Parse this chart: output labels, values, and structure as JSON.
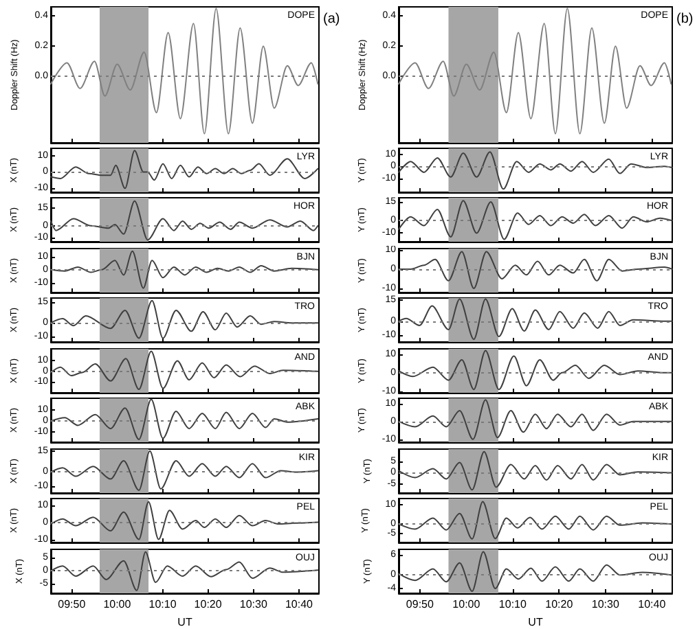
{
  "chart_data": [
    {
      "type": "line",
      "ylabel": "Doppler Shift (Hz)",
      "annotations": [
        "DOPE",
        "(a)"
      ],
      "tick_labels": "y",
      "color": "#808080",
      "xlim": [
        9.757,
        10.74
      ],
      "xticks": [
        {
          "value": 9.8333,
          "label": null
        },
        {
          "value": 10,
          "label": null
        },
        {
          "value": 10.1667,
          "label": null
        },
        {
          "value": 10.3333,
          "label": null
        },
        {
          "value": 10.5,
          "label": null
        },
        {
          "value": 10.6667,
          "label": null
        }
      ],
      "ylim": [
        -0.44,
        0.46
      ],
      "yticks": [
        {
          "value": 0,
          "label": "0.0"
        },
        {
          "value": 0.2,
          "label": "0.2"
        },
        {
          "value": 0.4,
          "label": "0.4"
        }
      ],
      "bands": [
        {
          "axis": "x",
          "from": 9.936,
          "to": 10.115,
          "color": "#a6a6a6"
        }
      ],
      "ref_lines": [
        {
          "axis": "y",
          "value": 0,
          "line_style": "dotted"
        }
      ],
      "x": [
        9.757,
        9.816,
        9.864,
        9.917,
        9.955,
        10.0,
        10.048,
        10.099,
        10.144,
        10.187,
        10.232,
        10.28,
        10.32,
        10.363,
        10.408,
        10.451,
        10.496,
        10.536,
        10.576,
        10.624,
        10.664,
        10.712,
        10.736
      ],
      "values": [
        -0.05,
        0.09,
        -0.08,
        0.1,
        -0.13,
        0.08,
        -0.09,
        0.16,
        -0.24,
        0.29,
        -0.28,
        0.35,
        -0.38,
        0.45,
        -0.38,
        0.32,
        -0.31,
        0.2,
        -0.21,
        0.07,
        -0.06,
        0.09,
        -0.05
      ]
    },
    {
      "type": "line",
      "ylabel": "X (nT)",
      "annotations": [
        "LYR"
      ],
      "tick_labels": "y",
      "color": "#404040",
      "xlim": [
        9.757,
        10.74
      ],
      "xticks": [
        {
          "value": 9.8333,
          "label": null
        },
        {
          "value": 10,
          "label": null
        },
        {
          "value": 10.1667,
          "label": null
        },
        {
          "value": 10.3333,
          "label": null
        },
        {
          "value": 10.5,
          "label": null
        },
        {
          "value": 10.6667,
          "label": null
        }
      ],
      "ylim": [
        -12.4,
        14.4
      ],
      "yticks": [
        -10,
        0,
        10
      ],
      "bands": [
        {
          "axis": "x",
          "from": 9.936,
          "to": 10.115,
          "color": "#a6a6a6"
        }
      ],
      "ref_lines": [
        {
          "axis": "y",
          "value": 0,
          "line_style": "dotted"
        }
      ],
      "x": [
        9.757,
        9.792,
        9.848,
        9.896,
        9.944,
        9.976,
        9.995,
        10.029,
        10.064,
        10.096,
        10.112,
        10.136,
        10.168,
        10.2,
        10.232,
        10.264,
        10.296,
        10.328,
        10.36,
        10.392,
        10.424,
        10.456,
        10.488,
        10.52,
        10.56,
        10.624,
        10.688,
        10.736
      ],
      "values": [
        -3,
        -4,
        3,
        -1,
        -2,
        -2,
        4,
        -10,
        13,
        0,
        0,
        -5,
        5,
        -4,
        4,
        -3,
        3,
        -1,
        2,
        -1,
        2,
        -1,
        1,
        5,
        -2,
        8,
        -4,
        2
      ]
    },
    {
      "type": "line",
      "ylabel": "X (nT)",
      "annotations": [
        "HOR"
      ],
      "tick_labels": "y",
      "color": "#404040",
      "xlim": [
        9.757,
        10.74
      ],
      "xticks": [
        {
          "value": 9.8333,
          "label": null
        },
        {
          "value": 10,
          "label": null
        },
        {
          "value": 10.1667,
          "label": null
        },
        {
          "value": 10.3333,
          "label": null
        },
        {
          "value": 10.5,
          "label": null
        },
        {
          "value": 10.6667,
          "label": null
        }
      ],
      "ylim": [
        -13.5,
        23.7
      ],
      "yticks": [
        -10,
        0,
        15
      ],
      "bands": [
        {
          "axis": "x",
          "from": 9.936,
          "to": 10.115,
          "color": "#a6a6a6"
        }
      ],
      "ref_lines": [
        {
          "axis": "y",
          "value": 0,
          "line_style": "dotted"
        }
      ],
      "x": [
        9.757,
        9.776,
        9.84,
        9.904,
        9.968,
        9.992,
        10.024,
        10.064,
        10.112,
        10.168,
        10.208,
        10.24,
        10.272,
        10.304,
        10.336,
        10.376,
        10.416,
        10.448,
        10.496,
        10.56,
        10.624,
        10.672,
        10.72,
        10.736
      ],
      "values": [
        4,
        -4,
        6,
        0,
        -2,
        1,
        -7,
        21,
        -12,
        6,
        -4,
        4,
        -3,
        2,
        -2,
        3,
        -3,
        3,
        -2,
        5,
        -1,
        4,
        -4,
        0
      ]
    },
    {
      "type": "line",
      "ylabel": "X (nT)",
      "annotations": [
        "BJN"
      ],
      "tick_labels": "y",
      "color": "#404040",
      "xlim": [
        9.757,
        10.74
      ],
      "xticks": [
        {
          "value": 9.8333,
          "label": null
        },
        {
          "value": 10,
          "label": null
        },
        {
          "value": 10.1667,
          "label": null
        },
        {
          "value": 10.3333,
          "label": null
        },
        {
          "value": 10.5,
          "label": null
        },
        {
          "value": 10.6667,
          "label": null
        }
      ],
      "ylim": [
        -17.3,
        16
      ],
      "yticks": [
        -10,
        0,
        10
      ],
      "bands": [
        {
          "axis": "x",
          "from": 9.936,
          "to": 10.115,
          "color": "#a6a6a6"
        }
      ],
      "ref_lines": [
        {
          "axis": "y",
          "value": 0,
          "line_style": "dotted"
        }
      ],
      "x": [
        9.757,
        9.808,
        9.856,
        9.904,
        9.944,
        9.992,
        10.024,
        10.056,
        10.096,
        10.128,
        10.168,
        10.208,
        10.248,
        10.288,
        10.328,
        10.368,
        10.408,
        10.448,
        10.488,
        10.528,
        10.576,
        10.64,
        10.736
      ],
      "values": [
        0,
        -1,
        2,
        -2,
        0,
        7,
        -4,
        14,
        -14,
        7,
        -6,
        2,
        -4,
        2,
        -2,
        1,
        -1,
        2,
        -2,
        3,
        -1,
        1,
        0
      ]
    },
    {
      "type": "line",
      "ylabel": "X (nT)",
      "annotations": [
        "TRO"
      ],
      "tick_labels": "y",
      "color": "#404040",
      "xlim": [
        9.757,
        10.74
      ],
      "xticks": [
        {
          "value": 9.8333,
          "label": null
        },
        {
          "value": 10,
          "label": null
        },
        {
          "value": 10.1667,
          "label": null
        },
        {
          "value": 10.3333,
          "label": null
        },
        {
          "value": 10.5,
          "label": null
        },
        {
          "value": 10.6667,
          "label": null
        }
      ],
      "ylim": [
        -13.7,
        17.8
      ],
      "yticks": [
        -10,
        0,
        15
      ],
      "bands": [
        {
          "axis": "x",
          "from": 9.936,
          "to": 10.115,
          "color": "#a6a6a6"
        }
      ],
      "ref_lines": [
        {
          "axis": "y",
          "value": 0,
          "line_style": "dotted"
        }
      ],
      "x": [
        9.757,
        9.8,
        9.84,
        9.885,
        9.976,
        10.029,
        10.08,
        10.128,
        10.168,
        10.216,
        10.272,
        10.315,
        10.36,
        10.4,
        10.44,
        10.488,
        10.528,
        10.576,
        10.64,
        10.736
      ],
      "values": [
        0,
        3,
        -2,
        5,
        -4,
        9,
        -11,
        16,
        -11,
        9,
        -6,
        8,
        -5,
        7,
        -3,
        5,
        -1,
        1,
        0,
        0
      ]
    },
    {
      "type": "line",
      "ylabel": "X (nT)",
      "annotations": [
        "AND"
      ],
      "tick_labels": "y",
      "color": "#404040",
      "xlim": [
        9.757,
        10.74
      ],
      "xticks": [
        {
          "value": 9.8333,
          "label": null
        },
        {
          "value": 10,
          "label": null
        },
        {
          "value": 10.1667,
          "label": null
        },
        {
          "value": 10.3333,
          "label": null
        },
        {
          "value": 10.5,
          "label": null
        },
        {
          "value": 10.6667,
          "label": null
        }
      ],
      "ylim": [
        -20.2,
        21.3
      ],
      "yticks": [
        -10,
        0,
        10
      ],
      "bands": [
        {
          "axis": "x",
          "from": 9.936,
          "to": 10.115,
          "color": "#a6a6a6"
        }
      ],
      "ref_lines": [
        {
          "axis": "y",
          "value": 0,
          "line_style": "dotted"
        }
      ],
      "x": [
        9.757,
        9.792,
        9.832,
        9.872,
        9.92,
        9.976,
        10.032,
        10.08,
        10.125,
        10.168,
        10.221,
        10.264,
        10.312,
        10.355,
        10.4,
        10.451,
        10.504,
        10.56,
        10.608,
        10.736
      ],
      "values": [
        -1,
        4,
        -4,
        -1,
        7,
        -9,
        12,
        -17,
        19,
        -16,
        10,
        -8,
        8,
        -6,
        6,
        -5,
        5,
        -2,
        1,
        0
      ]
    },
    {
      "type": "line",
      "ylabel": "X (nT)",
      "annotations": [
        "ABK"
      ],
      "tick_labels": "y",
      "color": "#404040",
      "xlim": [
        9.757,
        10.74
      ],
      "xticks": [
        {
          "value": 9.8333,
          "label": null
        },
        {
          "value": 10,
          "label": null
        },
        {
          "value": 10.1667,
          "label": null
        },
        {
          "value": 10.3333,
          "label": null
        },
        {
          "value": 10.5,
          "label": null
        },
        {
          "value": 10.6667,
          "label": null
        }
      ],
      "ylim": [
        -19.6,
        21
      ],
      "yticks": [
        -10,
        0,
        10
      ],
      "bands": [
        {
          "axis": "x",
          "from": 9.936,
          "to": 10.115,
          "color": "#a6a6a6"
        }
      ],
      "ref_lines": [
        {
          "axis": "y",
          "value": 0,
          "line_style": "dotted"
        }
      ],
      "x": [
        9.757,
        9.808,
        9.856,
        9.92,
        9.976,
        10.029,
        10.08,
        10.125,
        10.168,
        10.216,
        10.264,
        10.312,
        10.36,
        10.4,
        10.448,
        10.496,
        10.544,
        10.576,
        10.624,
        10.736
      ],
      "values": [
        0,
        3,
        -4,
        6,
        -7,
        12,
        -17,
        20,
        -16,
        9,
        -7,
        7,
        -7,
        8,
        -7,
        7,
        -6,
        2,
        -1,
        2
      ]
    },
    {
      "type": "line",
      "ylabel": "X (nT)",
      "annotations": [
        "KIR"
      ],
      "tick_labels": "y",
      "color": "#404040",
      "xlim": [
        9.757,
        10.74
      ],
      "xticks": [
        {
          "value": 9.8333,
          "label": null
        },
        {
          "value": 10,
          "label": null
        },
        {
          "value": 10.1667,
          "label": null
        },
        {
          "value": 10.3333,
          "label": null
        },
        {
          "value": 10.5,
          "label": null
        },
        {
          "value": 10.6667,
          "label": null
        }
      ],
      "ylim": [
        -15,
        16.4
      ],
      "yticks": [
        -10,
        0,
        15
      ],
      "bands": [
        {
          "axis": "x",
          "from": 9.936,
          "to": 10.115,
          "color": "#a6a6a6"
        }
      ],
      "ref_lines": [
        {
          "axis": "y",
          "value": 0,
          "line_style": "dotted"
        }
      ],
      "x": [
        9.757,
        9.8,
        9.848,
        9.912,
        9.976,
        10.024,
        10.08,
        10.12,
        10.16,
        10.216,
        10.264,
        10.312,
        10.36,
        10.4,
        10.448,
        10.496,
        10.544,
        10.6,
        10.656,
        10.736
      ],
      "values": [
        0,
        3,
        -3,
        4,
        -5,
        8,
        -13,
        15,
        -12,
        8,
        -3,
        6,
        -3,
        4,
        -4,
        6,
        -4,
        1,
        0,
        1
      ]
    },
    {
      "type": "line",
      "ylabel": "X (nT)",
      "annotations": [
        "PEL"
      ],
      "tick_labels": "y",
      "color": "#404040",
      "xlim": [
        9.757,
        10.74
      ],
      "xticks": [
        {
          "value": 9.8333,
          "label": null
        },
        {
          "value": 10,
          "label": null
        },
        {
          "value": 10.1667,
          "label": null
        },
        {
          "value": 10.3333,
          "label": null
        },
        {
          "value": 10.5,
          "label": null
        },
        {
          "value": 10.6667,
          "label": null
        }
      ],
      "ylim": [
        -11.8,
        13.9
      ],
      "yticks": [
        -10,
        0,
        10
      ],
      "bands": [
        {
          "axis": "x",
          "from": 9.936,
          "to": 10.115,
          "color": "#a6a6a6"
        }
      ],
      "ref_lines": [
        {
          "axis": "y",
          "value": 0,
          "line_style": "dotted"
        }
      ],
      "x": [
        9.757,
        9.8,
        9.848,
        9.912,
        9.976,
        10.024,
        10.08,
        10.115,
        10.152,
        10.192,
        10.24,
        10.288,
        10.32,
        10.36,
        10.4,
        10.448,
        10.496,
        10.544,
        10.592,
        10.656,
        10.736
      ],
      "values": [
        -1,
        2,
        -2,
        3,
        -5,
        6,
        -10,
        12,
        -10,
        7,
        -4,
        1,
        -3,
        2,
        -3,
        4,
        -2,
        1,
        -1,
        -0.5,
        0
      ]
    },
    {
      "type": "line",
      "ylabel": "X (nT)",
      "xlabel": "UT",
      "annotations": [
        "OUJ"
      ],
      "color": "#404040",
      "xlim": [
        9.757,
        10.74
      ],
      "xticks": [
        {
          "value": 9.8333,
          "label": "09:50"
        },
        {
          "value": 10,
          "label": "10:00"
        },
        {
          "value": 10.1667,
          "label": "10:10"
        },
        {
          "value": 10.3333,
          "label": "10:20"
        },
        {
          "value": 10.5,
          "label": "10:30"
        },
        {
          "value": 10.6667,
          "label": "10:40"
        }
      ],
      "ylim": [
        -8.6,
        8.3
      ],
      "yticks": [
        -5,
        0,
        5
      ],
      "bands": [
        {
          "axis": "x",
          "from": 9.936,
          "to": 10.115,
          "color": "#a6a6a6"
        }
      ],
      "ref_lines": [
        {
          "axis": "y",
          "value": 0,
          "line_style": "dotted"
        }
      ],
      "x": [
        9.757,
        9.8,
        9.848,
        9.912,
        9.96,
        10.024,
        10.072,
        10.104,
        10.141,
        10.184,
        10.24,
        10.288,
        10.344,
        10.4,
        10.448,
        10.496,
        10.56,
        10.608,
        10.736
      ],
      "values": [
        0,
        1.9,
        -2,
        1.9,
        -3.3,
        3.9,
        -7.5,
        7.3,
        -4.4,
        1.9,
        -2,
        1.9,
        -2.2,
        0.5,
        3.4,
        -2.8,
        1.1,
        -0.5,
        0.3
      ]
    },
    {
      "type": "line",
      "ylabel": "Doppler Shift (Hz)",
      "annotations": [
        "DOPE",
        "(b)"
      ],
      "tick_labels": "y",
      "color": "#808080",
      "xlim": [
        9.757,
        10.74
      ],
      "xticks": [
        {
          "value": 9.8333,
          "label": null
        },
        {
          "value": 10,
          "label": null
        },
        {
          "value": 10.1667,
          "label": null
        },
        {
          "value": 10.3333,
          "label": null
        },
        {
          "value": 10.5,
          "label": null
        },
        {
          "value": 10.6667,
          "label": null
        }
      ],
      "ylim": [
        -0.44,
        0.46
      ],
      "yticks": [
        {
          "value": 0,
          "label": "0.0"
        },
        {
          "value": 0.2,
          "label": "0.2"
        },
        {
          "value": 0.4,
          "label": "0.4"
        }
      ],
      "bands": [
        {
          "axis": "x",
          "from": 9.936,
          "to": 10.115,
          "color": "#a6a6a6"
        }
      ],
      "ref_lines": [
        {
          "axis": "y",
          "value": 0,
          "line_style": "dotted"
        }
      ],
      "x": [
        9.757,
        9.816,
        9.864,
        9.917,
        9.955,
        10.0,
        10.048,
        10.099,
        10.144,
        10.187,
        10.232,
        10.28,
        10.32,
        10.363,
        10.408,
        10.451,
        10.496,
        10.536,
        10.576,
        10.624,
        10.664,
        10.712,
        10.736
      ],
      "values": [
        -0.05,
        0.09,
        -0.08,
        0.1,
        -0.13,
        0.08,
        -0.09,
        0.16,
        -0.24,
        0.29,
        -0.28,
        0.35,
        -0.38,
        0.45,
        -0.38,
        0.32,
        -0.31,
        0.2,
        -0.21,
        0.07,
        -0.06,
        0.09,
        -0.05
      ]
    },
    {
      "type": "line",
      "ylabel": "Y (nT)",
      "annotations": [
        "LYR"
      ],
      "tick_labels": "y",
      "color": "#404040",
      "xlim": [
        9.757,
        10.74
      ],
      "xticks": [
        {
          "value": 9.8333,
          "label": null
        },
        {
          "value": 10,
          "label": null
        },
        {
          "value": 10.1667,
          "label": null
        },
        {
          "value": 10.3333,
          "label": null
        },
        {
          "value": 10.5,
          "label": null
        },
        {
          "value": 10.6667,
          "label": null
        }
      ],
      "ylim": [
        -21.7,
        15
      ],
      "yticks": [
        -10,
        0,
        10
      ],
      "bands": [
        {
          "axis": "x",
          "from": 9.936,
          "to": 10.115,
          "color": "#a6a6a6"
        }
      ],
      "ref_lines": [
        {
          "axis": "y",
          "value": 0,
          "line_style": "dotted"
        }
      ],
      "x": [
        9.757,
        9.8,
        9.848,
        9.896,
        9.944,
        9.989,
        10.037,
        10.085,
        10.133,
        10.181,
        10.224,
        10.264,
        10.304,
        10.336,
        10.376,
        10.416,
        10.456,
        10.512,
        10.552,
        10.592,
        10.648,
        10.712,
        10.739
      ],
      "values": [
        -5,
        4,
        -5,
        7,
        -9,
        11,
        -9,
        12,
        -19,
        4,
        -5,
        2,
        -3,
        2,
        -4,
        4,
        -5,
        6,
        -6,
        2,
        -1,
        0,
        -1
      ]
    },
    {
      "type": "line",
      "ylabel": "Y (nT)",
      "annotations": [
        "HOR"
      ],
      "tick_labels": "y",
      "color": "#404040",
      "xlim": [
        9.757,
        10.74
      ],
      "xticks": [
        {
          "value": 9.8333,
          "label": null
        },
        {
          "value": 10,
          "label": null
        },
        {
          "value": 10.1667,
          "label": null
        },
        {
          "value": 10.3333,
          "label": null
        },
        {
          "value": 10.5,
          "label": null
        },
        {
          "value": 10.6667,
          "label": null
        }
      ],
      "ylim": [
        -16.9,
        18.3
      ],
      "yticks": [
        -10,
        0,
        15
      ],
      "bands": [
        {
          "axis": "x",
          "from": 9.936,
          "to": 10.115,
          "color": "#a6a6a6"
        }
      ],
      "ref_lines": [
        {
          "axis": "y",
          "value": 0,
          "line_style": "dotted"
        }
      ],
      "x": [
        9.757,
        9.8,
        9.848,
        9.896,
        9.944,
        9.989,
        10.037,
        10.088,
        10.136,
        10.184,
        10.224,
        10.264,
        10.304,
        10.344,
        10.384,
        10.424,
        10.464,
        10.512,
        10.56,
        10.6,
        10.648,
        10.696,
        10.739
      ],
      "values": [
        -7,
        3,
        -4,
        9,
        -13,
        16,
        -10,
        15,
        -15,
        6,
        -3,
        4,
        -4,
        3,
        -2,
        5,
        -4,
        4,
        -6,
        3,
        -1,
        2,
        0
      ]
    },
    {
      "type": "line",
      "ylabel": "Y (nT)",
      "annotations": [
        "BJN"
      ],
      "tick_labels": "y",
      "color": "#404040",
      "xlim": [
        9.757,
        10.74
      ],
      "xticks": [
        {
          "value": 9.8333,
          "label": null
        },
        {
          "value": 10,
          "label": null
        },
        {
          "value": 10.1667,
          "label": null
        },
        {
          "value": 10.3333,
          "label": null
        },
        {
          "value": 10.5,
          "label": null
        },
        {
          "value": 10.6667,
          "label": null
        }
      ],
      "ylim": [
        -12.1,
        10.6
      ],
      "yticks": [
        -10,
        0,
        10
      ],
      "bands": [
        {
          "axis": "x",
          "from": 9.936,
          "to": 10.115,
          "color": "#a6a6a6"
        }
      ],
      "ref_lines": [
        {
          "axis": "y",
          "value": 0,
          "line_style": "dotted"
        }
      ],
      "x": [
        9.757,
        9.8,
        9.848,
        9.888,
        9.936,
        9.984,
        10.027,
        10.072,
        10.128,
        10.176,
        10.216,
        10.256,
        10.296,
        10.336,
        10.384,
        10.424,
        10.469,
        10.512,
        10.56,
        10.616,
        10.712,
        10.739
      ],
      "values": [
        0,
        0,
        2,
        5,
        -6,
        9,
        -10,
        9,
        -5,
        2,
        -3,
        4,
        -3,
        2,
        -2,
        5,
        -6,
        5,
        -1,
        0,
        1,
        0
      ]
    },
    {
      "type": "line",
      "ylabel": "Y (nT)",
      "annotations": [
        "TRO"
      ],
      "tick_labels": "y",
      "color": "#404040",
      "xlim": [
        9.757,
        10.74
      ],
      "xticks": [
        {
          "value": 9.8333,
          "label": null
        },
        {
          "value": 10,
          "label": null
        },
        {
          "value": 10.1667,
          "label": null
        },
        {
          "value": 10.3333,
          "label": null
        },
        {
          "value": 10.5,
          "label": null
        },
        {
          "value": 10.6667,
          "label": null
        }
      ],
      "ylim": [
        -14.9,
        16.7
      ],
      "yticks": [
        -10,
        0,
        15
      ],
      "bands": [
        {
          "axis": "x",
          "from": 9.936,
          "to": 10.115,
          "color": "#a6a6a6"
        }
      ],
      "ref_lines": [
        {
          "axis": "y",
          "value": 0,
          "line_style": "dotted"
        }
      ],
      "x": [
        9.757,
        9.784,
        9.832,
        9.877,
        9.936,
        9.976,
        10.027,
        10.069,
        10.117,
        10.165,
        10.208,
        10.248,
        10.296,
        10.336,
        10.384,
        10.424,
        10.472,
        10.512,
        10.552,
        10.6,
        10.712,
        10.739
      ],
      "values": [
        0,
        2,
        -3,
        11,
        -6,
        16,
        -13,
        16,
        -11,
        9,
        -7,
        8,
        -6,
        7,
        -5,
        6,
        -5,
        7,
        -3,
        1,
        0,
        0
      ]
    },
    {
      "type": "line",
      "ylabel": "Y (nT)",
      "annotations": [
        "AND"
      ],
      "tick_labels": "y",
      "color": "#404040",
      "xlim": [
        9.757,
        10.74
      ],
      "xticks": [
        {
          "value": 9.8333,
          "label": null
        },
        {
          "value": 10,
          "label": null
        },
        {
          "value": 10.1667,
          "label": null
        },
        {
          "value": 10.3333,
          "label": null
        },
        {
          "value": 10.5,
          "label": null
        },
        {
          "value": 10.6667,
          "label": null
        }
      ],
      "ylim": [
        -10.8,
        12.9
      ],
      "yticks": [
        -10,
        0,
        10
      ],
      "bands": [
        {
          "axis": "x",
          "from": 9.936,
          "to": 10.115,
          "color": "#a6a6a6"
        }
      ],
      "ref_lines": [
        {
          "axis": "y",
          "value": 0,
          "line_style": "dotted"
        }
      ],
      "x": [
        9.757,
        9.808,
        9.88,
        9.936,
        9.984,
        10.027,
        10.069,
        10.117,
        10.171,
        10.216,
        10.264,
        10.312,
        10.344,
        10.392,
        10.44,
        10.496,
        10.552,
        10.616,
        10.712,
        10.739
      ],
      "values": [
        1,
        -2,
        3,
        -4,
        7,
        -9,
        12,
        -9,
        9,
        -7,
        7,
        -4,
        0,
        4,
        -3,
        4,
        -1,
        1,
        0,
        0
      ]
    },
    {
      "type": "line",
      "ylabel": "Y (nT)",
      "annotations": [
        "ABK"
      ],
      "tick_labels": "y",
      "color": "#404040",
      "xlim": [
        9.757,
        10.74
      ],
      "xticks": [
        {
          "value": 9.8333,
          "label": null
        },
        {
          "value": 10,
          "label": null
        },
        {
          "value": 10.1667,
          "label": null
        },
        {
          "value": 10.3333,
          "label": null
        },
        {
          "value": 10.5,
          "label": null
        },
        {
          "value": 10.6667,
          "label": null
        }
      ],
      "ylim": [
        -11.6,
        12.9
      ],
      "yticks": [
        -10,
        0,
        10
      ],
      "bands": [
        {
          "axis": "x",
          "from": 9.936,
          "to": 10.115,
          "color": "#a6a6a6"
        }
      ],
      "ref_lines": [
        {
          "axis": "y",
          "value": 0,
          "line_style": "dotted"
        }
      ],
      "x": [
        9.757,
        9.816,
        9.88,
        9.928,
        9.976,
        10.024,
        10.069,
        10.112,
        10.16,
        10.205,
        10.248,
        10.288,
        10.328,
        10.376,
        10.416,
        10.456,
        10.504,
        10.552,
        10.6,
        10.712,
        10.739
      ],
      "values": [
        0,
        -3,
        3,
        -3,
        6,
        -10,
        12,
        -9,
        6,
        -6,
        4,
        -4,
        4,
        -3,
        4,
        -5,
        4,
        -2,
        0,
        0,
        0
      ]
    },
    {
      "type": "line",
      "ylabel": "Y (nT)",
      "annotations": [
        "KIR"
      ],
      "tick_labels": "y",
      "color": "#404040",
      "xlim": [
        9.757,
        10.74
      ],
      "xticks": [
        {
          "value": 9.8333,
          "label": null
        },
        {
          "value": 10,
          "label": null
        },
        {
          "value": 10.1667,
          "label": null
        },
        {
          "value": 10.3333,
          "label": null
        },
        {
          "value": 10.5,
          "label": null
        },
        {
          "value": 10.6667,
          "label": null
        }
      ],
      "ylim": [
        -8.9,
        10.4
      ],
      "yticks": [
        -5,
        0,
        5
      ],
      "bands": [
        {
          "axis": "x",
          "from": 9.936,
          "to": 10.115,
          "color": "#a6a6a6"
        }
      ],
      "ref_lines": [
        {
          "axis": "y",
          "value": 0,
          "line_style": "dotted"
        }
      ],
      "x": [
        9.757,
        9.816,
        9.88,
        9.928,
        9.976,
        10.021,
        10.064,
        10.107,
        10.16,
        10.208,
        10.248,
        10.288,
        10.328,
        10.376,
        10.416,
        10.456,
        10.504,
        10.552,
        10.616,
        10.739
      ],
      "values": [
        0.9,
        -2.1,
        1.8,
        -2.7,
        4.5,
        -7.5,
        9.3,
        -6.3,
        3.6,
        -2.7,
        3.2,
        -3.2,
        3.2,
        -2.7,
        3.6,
        -3.2,
        3.6,
        -0.9,
        0.4,
        0
      ]
    },
    {
      "type": "line",
      "ylabel": "Y (nT)",
      "annotations": [
        "PEL"
      ],
      "tick_labels": "y",
      "color": "#404040",
      "xlim": [
        9.757,
        10.74
      ],
      "xticks": [
        {
          "value": 9.8333,
          "label": null
        },
        {
          "value": 10,
          "label": null
        },
        {
          "value": 10.1667,
          "label": null
        },
        {
          "value": 10.3333,
          "label": null
        },
        {
          "value": 10.5,
          "label": null
        },
        {
          "value": 10.6667,
          "label": null
        }
      ],
      "ylim": [
        -9.4,
        13
      ],
      "yticks": [
        -5,
        0,
        10
      ],
      "bands": [
        {
          "axis": "x",
          "from": 9.936,
          "to": 10.115,
          "color": "#a6a6a6"
        }
      ],
      "ref_lines": [
        {
          "axis": "y",
          "value": 0,
          "line_style": "dotted"
        }
      ],
      "x": [
        9.757,
        9.816,
        9.88,
        9.928,
        9.976,
        10.021,
        10.059,
        10.104,
        10.144,
        10.184,
        10.229,
        10.272,
        10.32,
        10.368,
        10.408,
        10.456,
        10.504,
        10.552,
        10.632,
        10.739
      ],
      "values": [
        0,
        -2.6,
        3,
        -3,
        5.4,
        -7.6,
        11.4,
        -7.4,
        3,
        -2,
        3.4,
        -2.6,
        4,
        -2.6,
        4,
        -3,
        4,
        -0.6,
        0.6,
        0
      ]
    },
    {
      "type": "line",
      "ylabel": "Y (nT)",
      "xlabel": "UT",
      "annotations": [
        "OUJ"
      ],
      "color": "#404040",
      "xlim": [
        9.757,
        10.74
      ],
      "xticks": [
        {
          "value": 9.8333,
          "label": "09:50"
        },
        {
          "value": 10,
          "label": "10:00"
        },
        {
          "value": 10.1667,
          "label": "10:10"
        },
        {
          "value": 10.3333,
          "label": "10:20"
        },
        {
          "value": 10.5,
          "label": "10:30"
        },
        {
          "value": 10.6667,
          "label": "10:40"
        }
      ],
      "ylim": [
        -5.4,
        7.6
      ],
      "yticks": [
        -4,
        0,
        6
      ],
      "bands": [
        {
          "axis": "x",
          "from": 9.936,
          "to": 10.115,
          "color": "#a6a6a6"
        }
      ],
      "ref_lines": [
        {
          "axis": "y",
          "value": 0,
          "line_style": "dotted"
        }
      ],
      "x": [
        9.757,
        9.816,
        9.88,
        9.928,
        9.976,
        10.021,
        10.061,
        10.104,
        10.144,
        10.187,
        10.232,
        10.272,
        10.32,
        10.368,
        10.408,
        10.456,
        10.504,
        10.552,
        10.632,
        10.739
      ],
      "values": [
        0.4,
        -1.6,
        1.8,
        -2,
        3.6,
        -4.8,
        6.9,
        -4,
        1.8,
        -1.2,
        2,
        -1.8,
        2.4,
        -1.8,
        1.8,
        -1.8,
        3,
        0,
        0.8,
        0
      ]
    }
  ]
}
